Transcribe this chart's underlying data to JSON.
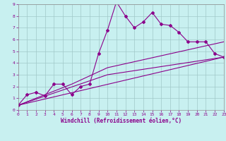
{
  "title": "",
  "xlabel": "Windchill (Refroidissement éolien,°C)",
  "ylabel": "",
  "bg_color": "#c8f0f0",
  "line_color": "#8b008b",
  "grid_color": "#a0c8c8",
  "xlim": [
    0,
    23
  ],
  "ylim": [
    0,
    9
  ],
  "xticks": [
    0,
    1,
    2,
    3,
    4,
    5,
    6,
    7,
    8,
    9,
    10,
    11,
    12,
    13,
    14,
    15,
    16,
    17,
    18,
    19,
    20,
    21,
    22,
    23
  ],
  "yticks": [
    0,
    1,
    2,
    3,
    4,
    5,
    6,
    7,
    8,
    9
  ],
  "series1_x": [
    0,
    1,
    2,
    3,
    4,
    5,
    6,
    7,
    8,
    9,
    10,
    11,
    12,
    13,
    14,
    15,
    16,
    17,
    18,
    19,
    20,
    21,
    22,
    23
  ],
  "series1_y": [
    0.4,
    1.3,
    1.5,
    1.2,
    2.2,
    2.2,
    1.3,
    2.0,
    2.2,
    4.8,
    6.8,
    9.2,
    8.0,
    7.0,
    7.5,
    8.3,
    7.3,
    7.2,
    6.6,
    5.8,
    5.8,
    5.8,
    4.8,
    4.5
  ],
  "series2_x": [
    0,
    23
  ],
  "series2_y": [
    0.4,
    4.5
  ],
  "series3_x": [
    0,
    10,
    23
  ],
  "series3_y": [
    0.4,
    3.0,
    4.5
  ],
  "series4_x": [
    0,
    6,
    10,
    23
  ],
  "series4_y": [
    0.4,
    2.2,
    3.6,
    5.8
  ]
}
